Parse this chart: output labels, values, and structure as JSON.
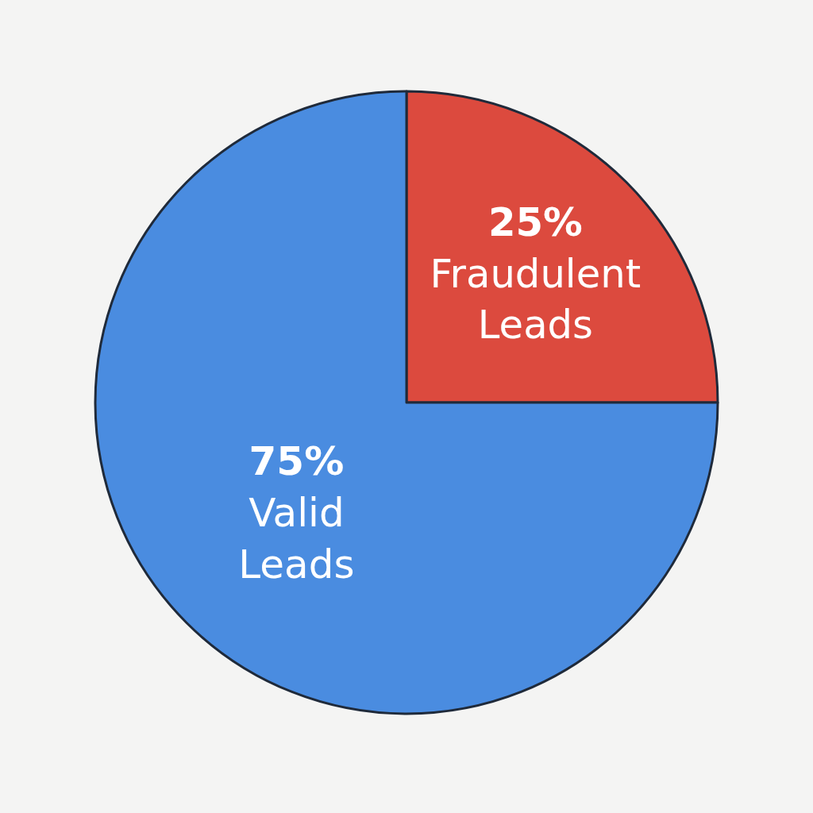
{
  "chart_data": {
    "type": "pie",
    "categories": [
      "Fraudulent Leads",
      "Valid Leads"
    ],
    "values": [
      25,
      75
    ],
    "value_labels": [
      "25%",
      "75%"
    ],
    "colors": [
      "#dc4a3e",
      "#4a8ce0"
    ],
    "legend": false
  }
}
